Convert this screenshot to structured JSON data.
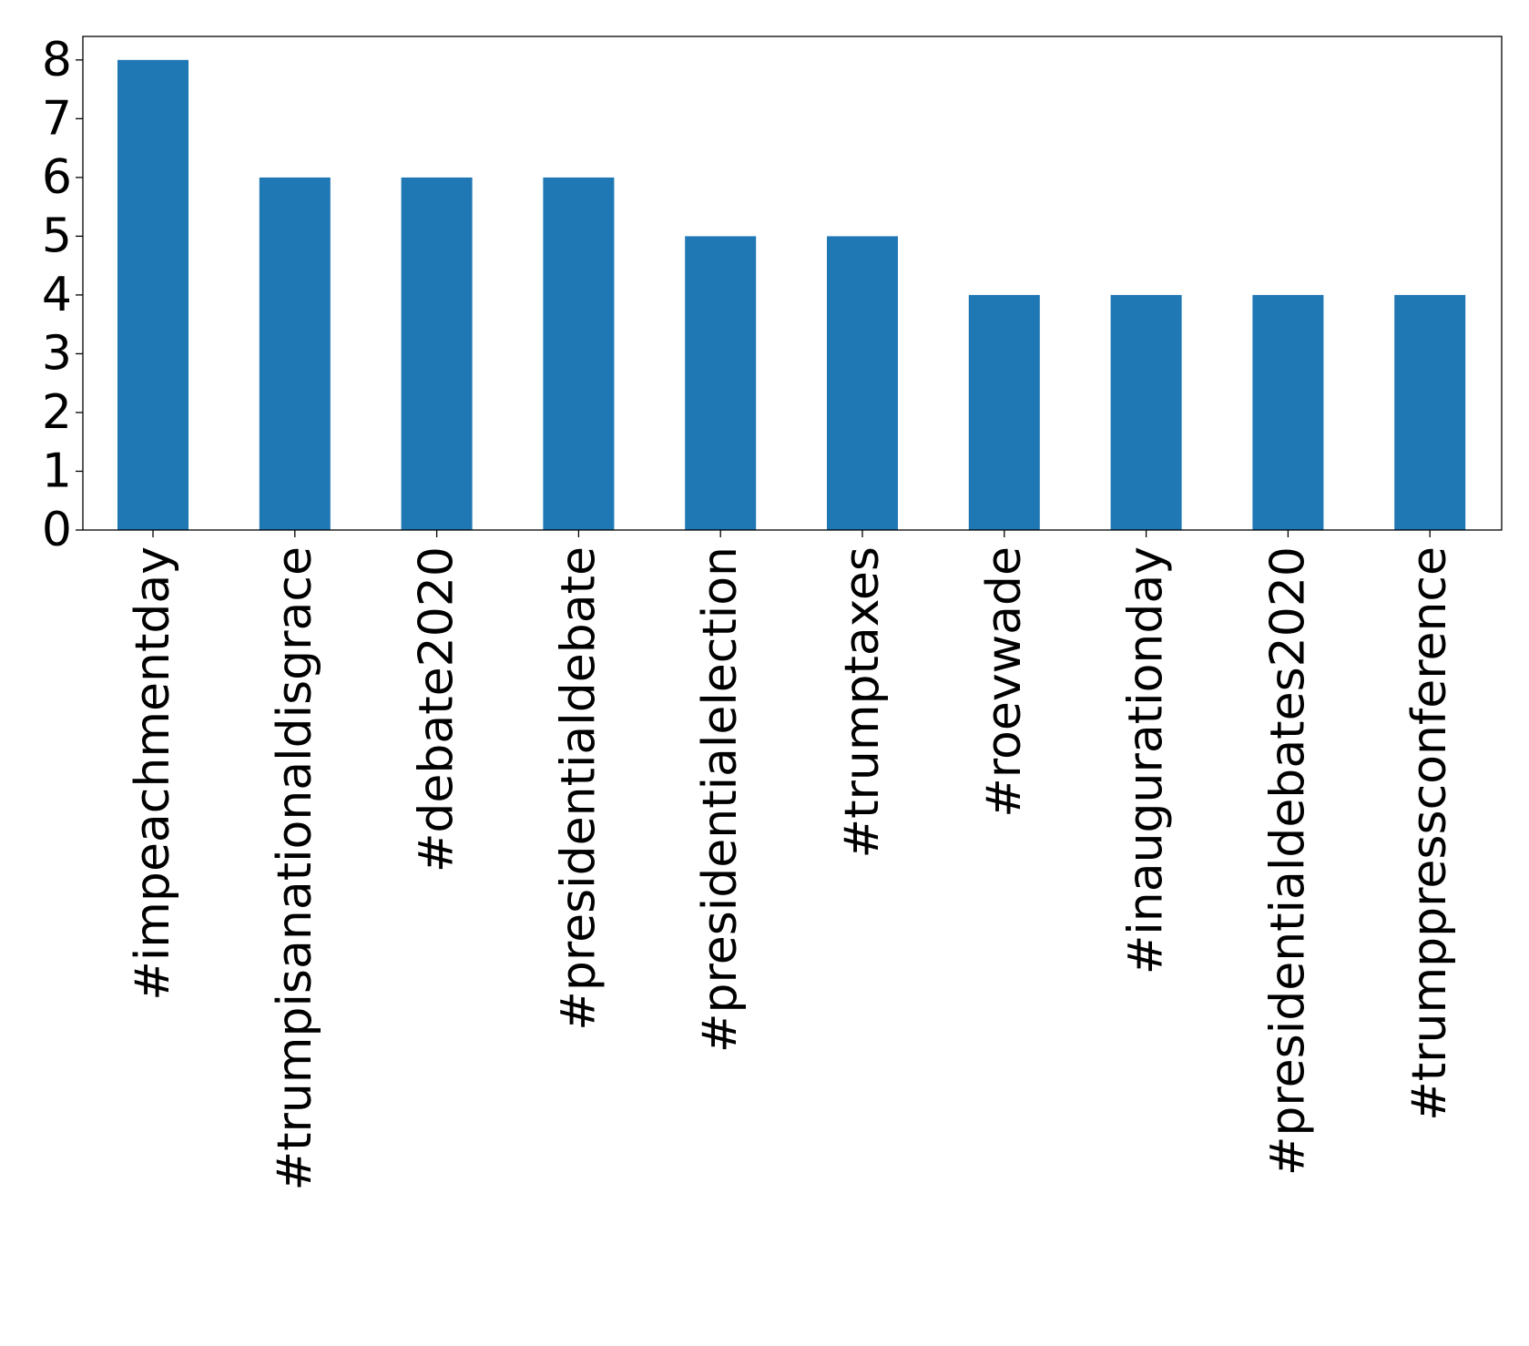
{
  "chart_data": {
    "type": "bar",
    "title": "",
    "xlabel": "",
    "ylabel": "",
    "categories": [
      "#impeachmentday",
      "#trumpisanationaldisgrace",
      "#debate2020",
      "#presidentialdebate",
      "#presidentialelection",
      "#trumptaxes",
      "#roevwade",
      "#inaugurationday",
      "#presidentialdebates2020",
      "#trumppressconference"
    ],
    "values": [
      8,
      6,
      6,
      6,
      5,
      5,
      4,
      4,
      4,
      4
    ],
    "ylim": [
      0,
      8.4
    ],
    "yticks": [
      "0",
      "1",
      "2",
      "3",
      "4",
      "5",
      "6",
      "7",
      "8"
    ],
    "grid": false,
    "legend": "none",
    "bar_color": "#1f77b4"
  }
}
